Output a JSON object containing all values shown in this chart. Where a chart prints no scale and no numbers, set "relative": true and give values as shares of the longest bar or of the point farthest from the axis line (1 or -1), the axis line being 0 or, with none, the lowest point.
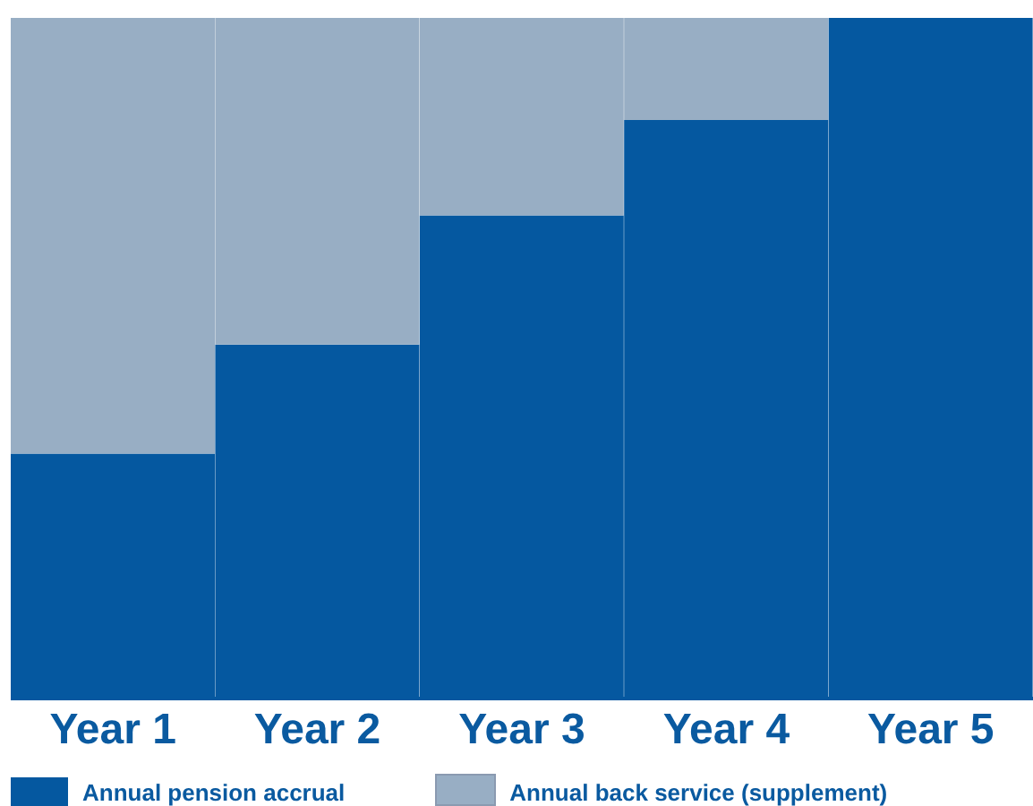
{
  "chart_data": {
    "type": "bar",
    "stacked": true,
    "relative": true,
    "categories": [
      "Year 1",
      "Year 2",
      "Year 3",
      "Year 4",
      "Year 5"
    ],
    "series": [
      {
        "name": "Annual pension accrual",
        "color": "#0558a0",
        "values": [
          0.36,
          0.52,
          0.71,
          0.85,
          1
        ]
      },
      {
        "name": "Annual back service (supplement)",
        "color": "#98aec4",
        "values": [
          0.64,
          0.48,
          0.29,
          0.15,
          0
        ]
      }
    ],
    "legend": "bottom"
  }
}
